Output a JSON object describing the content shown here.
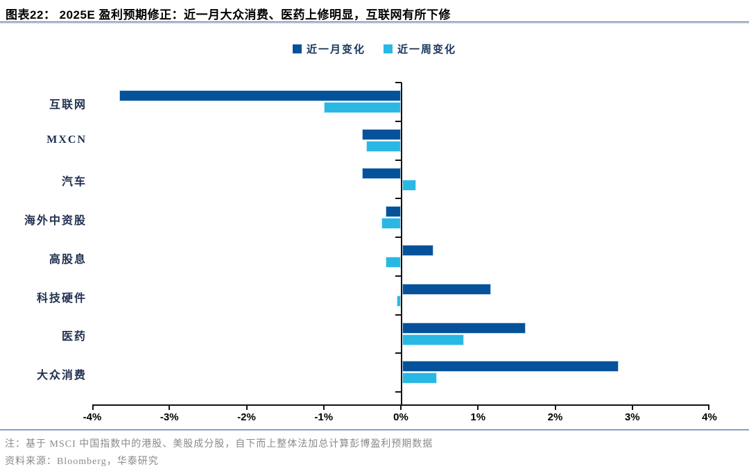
{
  "header": {
    "title": "图表22： 2025E 盈利预期修正：近一月大众消费、医药上修明显，互联网有所下修"
  },
  "legend": [
    {
      "label": "近一月变化",
      "color": "#05529a"
    },
    {
      "label": "近一周变化",
      "color": "#29b8e3"
    }
  ],
  "chart_data": {
    "type": "bar",
    "orientation": "horizontal",
    "title": "2025E 盈利预期修正",
    "categories": [
      "互联网",
      "MXCN",
      "汽车",
      "海外中资股",
      "高股息",
      "科技硬件",
      "医药",
      "大众消费"
    ],
    "series": [
      {
        "name": "近一月变化",
        "color": "#05529a",
        "values": [
          -3.65,
          -0.5,
          -0.5,
          -0.2,
          0.4,
          1.15,
          1.6,
          2.8
        ]
      },
      {
        "name": "近一周变化",
        "color": "#29b8e3",
        "values": [
          -1.0,
          -0.45,
          0.18,
          -0.25,
          -0.2,
          -0.05,
          0.8,
          0.45
        ]
      }
    ],
    "xlim": [
      -4,
      4
    ],
    "x_ticks": [
      "-4%",
      "-3%",
      "-2%",
      "-1%",
      "0%",
      "1%",
      "2%",
      "3%",
      "4%"
    ],
    "unit": "%",
    "grid": false,
    "legend_position": "top"
  },
  "notes": {
    "note1": "注：基于 MSCI 中国指数中的港股、美股成分股，自下而上整体法加总计算彭博盈利预期数据",
    "note2": "资料来源：Bloomberg，华泰研究"
  }
}
